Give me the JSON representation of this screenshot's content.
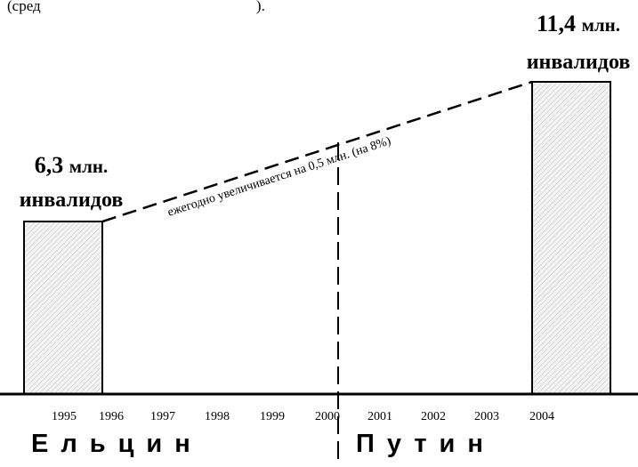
{
  "header_fragment": "(сред                                                         ).",
  "colors": {
    "axis": "#000000",
    "bar_fill": "#f3f3f3",
    "bar_hatch": "#bdbdbd",
    "trend": "#000000"
  },
  "chart_data": {
    "type": "bar",
    "years": [
      "1995",
      "1996",
      "1997",
      "1998",
      "1999",
      "2000",
      "2001",
      "2002",
      "2003",
      "2004"
    ],
    "bars": [
      {
        "year_start": 1995,
        "year_end": 1996,
        "value": 6.3,
        "label_num": "6,3",
        "label_unit": "млн.",
        "label_sub": "инвалидов"
      },
      {
        "year_start": 2003,
        "year_end": 2004,
        "value": 11.4,
        "label_num": "11,4",
        "label_unit": "млн.",
        "label_sub": "инвалидов"
      }
    ],
    "trend": {
      "from_year": 1996,
      "from_value": 6.3,
      "to_year": 2003,
      "to_value": 11.4,
      "label": "ежегодно увеличивается на 0,5 млн. (на 8%)"
    },
    "divider_year": 2000,
    "eras": [
      {
        "label": "Ельцин"
      },
      {
        "label": "Путин"
      }
    ],
    "ylim": [
      0,
      12.3
    ]
  }
}
